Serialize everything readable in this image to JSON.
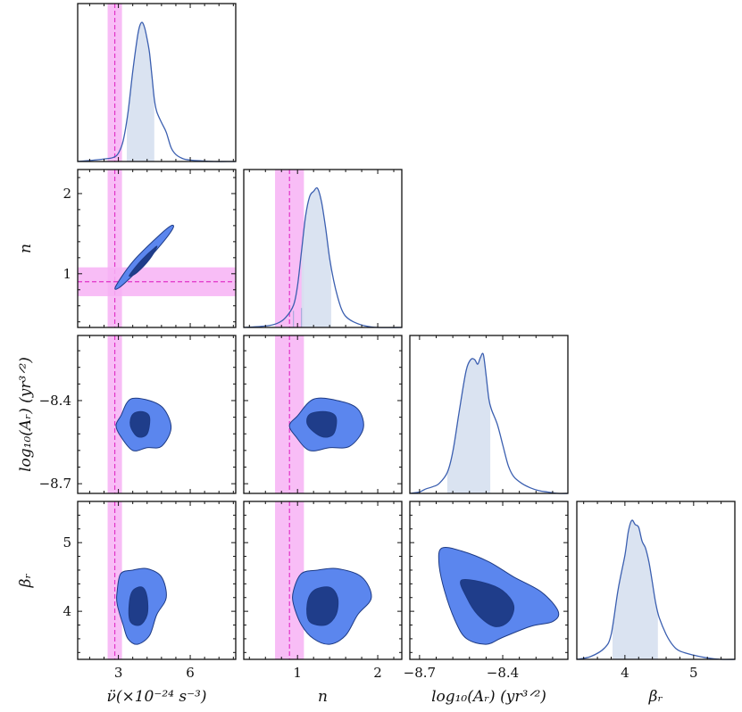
{
  "colors": {
    "line": "#3b5fb0",
    "outer_contour": "#5b86ee",
    "inner_contour": "#1f3d8a",
    "contour_edge": "#1d3a84",
    "credible_fill": "#d6e0ef",
    "truth_band": "#f7b2f4",
    "truth_line": "#e133c8",
    "frame": "#111111"
  },
  "chart_data": {
    "type": "corner",
    "parameters": [
      {
        "id": "nuddot",
        "label": "ν̈(×10⁻²⁴ s⁻³)",
        "range": [
          1.3,
          7.9
        ],
        "ticks": [
          3,
          6
        ],
        "tick_labels": [
          "3",
          "6"
        ],
        "truth": 2.85,
        "truth_band": [
          2.55,
          3.15
        ]
      },
      {
        "id": "n",
        "label": "n",
        "range": [
          0.33,
          2.3
        ],
        "ticks": [
          1,
          2
        ],
        "tick_labels": [
          "1",
          "2"
        ],
        "truth": 0.9,
        "truth_band": [
          0.72,
          1.08
        ]
      },
      {
        "id": "logA",
        "label": "log₁₀(Aᵣ) (yr³ᐟ²)",
        "range": [
          -8.735,
          -8.165
        ],
        "ticks": [
          -8.7,
          -8.4
        ],
        "tick_labels": [
          "−8.7",
          "−8.4"
        ]
      },
      {
        "id": "beta",
        "label": "βᵣ",
        "range": [
          3.3,
          5.6
        ],
        "ticks": [
          4,
          5
        ],
        "tick_labels": [
          "4",
          "5"
        ]
      }
    ],
    "marginals": [
      {
        "param": "nuddot",
        "credible_interval": [
          3.35,
          4.5
        ],
        "x": [
          1.3,
          2.0,
          2.5,
          2.8,
          3.0,
          3.2,
          3.4,
          3.6,
          3.8,
          3.9,
          4.0,
          4.1,
          4.2,
          4.3,
          4.4,
          4.5,
          4.6,
          4.8,
          5.0,
          5.2,
          5.4,
          5.7,
          6.0,
          6.4,
          7.0,
          7.9
        ],
        "y": [
          0,
          0.01,
          0.02,
          0.03,
          0.06,
          0.15,
          0.35,
          0.65,
          0.9,
          0.98,
          1.0,
          0.96,
          0.88,
          0.78,
          0.62,
          0.45,
          0.36,
          0.28,
          0.21,
          0.1,
          0.05,
          0.02,
          0.01,
          0.005,
          0,
          0
        ]
      },
      {
        "param": "n",
        "credible_interval": [
          1.05,
          1.42
        ],
        "x": [
          0.33,
          0.6,
          0.75,
          0.85,
          0.95,
          1.0,
          1.05,
          1.1,
          1.15,
          1.2,
          1.25,
          1.3,
          1.35,
          1.4,
          1.45,
          1.5,
          1.55,
          1.6,
          1.7,
          1.85,
          2.0,
          2.3
        ],
        "y": [
          0,
          0.01,
          0.03,
          0.07,
          0.16,
          0.3,
          0.55,
          0.8,
          0.94,
          0.98,
          1.0,
          0.9,
          0.72,
          0.5,
          0.34,
          0.22,
          0.13,
          0.08,
          0.04,
          0.01,
          0,
          0
        ],
        "sample_markers": [
          [
            0.95,
            0.12
          ],
          [
            1.05,
            0.14
          ]
        ]
      },
      {
        "param": "logA",
        "credible_interval": [
          -8.6,
          -8.445
        ],
        "x": [
          -8.735,
          -8.7,
          -8.68,
          -8.65,
          -8.63,
          -8.6,
          -8.58,
          -8.56,
          -8.54,
          -8.53,
          -8.52,
          -8.51,
          -8.5,
          -8.49,
          -8.48,
          -8.47,
          -8.46,
          -8.45,
          -8.44,
          -8.42,
          -8.4,
          -8.38,
          -8.36,
          -8.33,
          -8.3,
          -8.27,
          -8.24,
          -8.2,
          -8.165
        ],
        "y": [
          0,
          0.01,
          0.03,
          0.05,
          0.07,
          0.15,
          0.3,
          0.55,
          0.8,
          0.9,
          0.95,
          0.97,
          0.96,
          0.93,
          0.98,
          1.0,
          0.85,
          0.68,
          0.6,
          0.5,
          0.35,
          0.2,
          0.12,
          0.07,
          0.04,
          0.02,
          0.01,
          0,
          0
        ]
      },
      {
        "param": "beta",
        "credible_interval": [
          3.82,
          4.48
        ],
        "x": [
          3.3,
          3.5,
          3.7,
          3.8,
          3.9,
          4.0,
          4.05,
          4.1,
          4.15,
          4.2,
          4.25,
          4.3,
          4.35,
          4.4,
          4.45,
          4.5,
          4.6,
          4.7,
          4.8,
          5.0,
          5.2,
          5.4,
          5.6
        ],
        "y": [
          0,
          0.02,
          0.08,
          0.18,
          0.5,
          0.75,
          0.92,
          1.0,
          0.97,
          0.95,
          0.85,
          0.8,
          0.7,
          0.55,
          0.4,
          0.3,
          0.18,
          0.1,
          0.06,
          0.03,
          0.01,
          0,
          0
        ]
      }
    ],
    "joints": [
      {
        "x": "nuddot",
        "y": "n",
        "outer": [
          [
            2.9,
            0.85
          ],
          [
            3.6,
            1.15
          ],
          [
            4.6,
            1.45
          ],
          [
            5.2,
            1.6
          ],
          [
            5.25,
            1.55
          ],
          [
            4.6,
            1.3
          ],
          [
            3.6,
            0.98
          ],
          [
            3.0,
            0.82
          ]
        ],
        "inner": [
          [
            3.5,
            1.0
          ],
          [
            4.0,
            1.18
          ],
          [
            4.5,
            1.32
          ],
          [
            4.6,
            1.33
          ],
          [
            4.3,
            1.18
          ],
          [
            3.8,
            1.02
          ],
          [
            3.5,
            0.97
          ]
        ]
      },
      {
        "x": "nuddot",
        "y": "logA",
        "outer": [
          [
            3.1,
            -8.455
          ],
          [
            3.5,
            -8.395
          ],
          [
            4.3,
            -8.4
          ],
          [
            4.9,
            -8.43
          ],
          [
            5.2,
            -8.5
          ],
          [
            4.8,
            -8.565
          ],
          [
            4.2,
            -8.57
          ],
          [
            3.6,
            -8.58
          ],
          [
            3.1,
            -8.53
          ],
          [
            2.9,
            -8.49
          ]
        ],
        "inner": [
          [
            3.6,
            -8.45
          ],
          [
            4.0,
            -8.44
          ],
          [
            4.3,
            -8.46
          ],
          [
            4.2,
            -8.52
          ],
          [
            3.8,
            -8.53
          ],
          [
            3.5,
            -8.49
          ]
        ]
      },
      {
        "x": "n",
        "y": "logA",
        "outer": [
          [
            1.0,
            -8.455
          ],
          [
            1.2,
            -8.395
          ],
          [
            1.5,
            -8.4
          ],
          [
            1.75,
            -8.43
          ],
          [
            1.82,
            -8.5
          ],
          [
            1.65,
            -8.565
          ],
          [
            1.4,
            -8.57
          ],
          [
            1.15,
            -8.58
          ],
          [
            0.98,
            -8.53
          ],
          [
            0.9,
            -8.49
          ]
        ],
        "inner": [
          [
            1.15,
            -8.45
          ],
          [
            1.35,
            -8.44
          ],
          [
            1.48,
            -8.46
          ],
          [
            1.45,
            -8.52
          ],
          [
            1.3,
            -8.53
          ],
          [
            1.13,
            -8.49
          ]
        ]
      },
      {
        "x": "nuddot",
        "y": "beta",
        "outer": [
          [
            2.95,
            4.3
          ],
          [
            3.1,
            4.55
          ],
          [
            3.6,
            4.6
          ],
          [
            4.2,
            4.62
          ],
          [
            4.8,
            4.5
          ],
          [
            5.0,
            4.2
          ],
          [
            4.6,
            3.95
          ],
          [
            4.3,
            3.65
          ],
          [
            3.8,
            3.52
          ],
          [
            3.4,
            3.6
          ],
          [
            3.2,
            3.8
          ],
          [
            2.95,
            4.1
          ]
        ],
        "inner": [
          [
            3.6,
            4.3
          ],
          [
            4.0,
            4.35
          ],
          [
            4.2,
            4.2
          ],
          [
            4.2,
            3.95
          ],
          [
            3.9,
            3.8
          ],
          [
            3.5,
            3.85
          ],
          [
            3.45,
            4.1
          ]
        ]
      },
      {
        "x": "n",
        "y": "beta",
        "outer": [
          [
            0.95,
            4.3
          ],
          [
            1.05,
            4.55
          ],
          [
            1.25,
            4.6
          ],
          [
            1.5,
            4.62
          ],
          [
            1.8,
            4.5
          ],
          [
            1.92,
            4.2
          ],
          [
            1.75,
            3.95
          ],
          [
            1.6,
            3.65
          ],
          [
            1.4,
            3.52
          ],
          [
            1.2,
            3.6
          ],
          [
            1.05,
            3.8
          ],
          [
            0.95,
            4.1
          ]
        ],
        "inner": [
          [
            1.2,
            4.3
          ],
          [
            1.4,
            4.35
          ],
          [
            1.5,
            4.2
          ],
          [
            1.48,
            3.95
          ],
          [
            1.35,
            3.8
          ],
          [
            1.15,
            3.85
          ],
          [
            1.12,
            4.1
          ]
        ]
      },
      {
        "x": "logA",
        "y": "beta",
        "outer": [
          [
            -8.62,
            4.92
          ],
          [
            -8.55,
            4.88
          ],
          [
            -8.45,
            4.72
          ],
          [
            -8.36,
            4.5
          ],
          [
            -8.26,
            4.28
          ],
          [
            -8.2,
            4.0
          ],
          [
            -8.22,
            3.85
          ],
          [
            -8.3,
            3.78
          ],
          [
            -8.4,
            3.62
          ],
          [
            -8.46,
            3.52
          ],
          [
            -8.53,
            3.6
          ],
          [
            -8.57,
            3.85
          ],
          [
            -8.61,
            4.3
          ],
          [
            -8.63,
            4.7
          ]
        ],
        "inner": [
          [
            -8.55,
            4.45
          ],
          [
            -8.47,
            4.42
          ],
          [
            -8.4,
            4.3
          ],
          [
            -8.36,
            4.08
          ],
          [
            -8.38,
            3.85
          ],
          [
            -8.43,
            3.78
          ],
          [
            -8.49,
            3.95
          ],
          [
            -8.53,
            4.2
          ]
        ]
      }
    ]
  }
}
